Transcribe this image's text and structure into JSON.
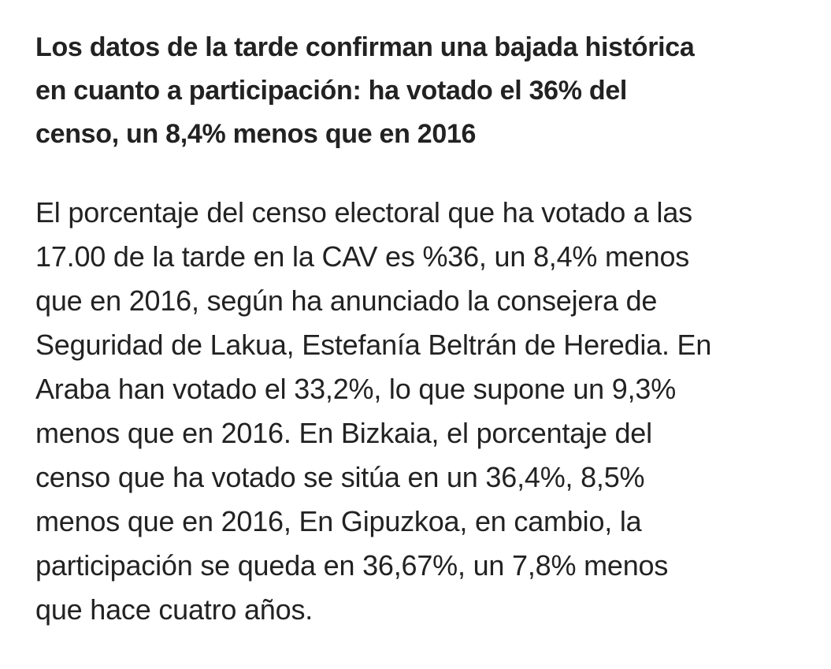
{
  "headline": {
    "lines": [
      "Los datos de la tarde confirman una bajada histórica",
      "en cuanto a participación: ha votado el 36% del",
      "censo, un 8,4% menos que en 2016"
    ]
  },
  "body": {
    "lines": [
      "El porcentaje del censo electoral que ha votado a las",
      "17.00 de la tarde en la CAV es %36, un 8,4% menos",
      "que en 2016, según ha anunciado la consejera de",
      "Seguridad de Lakua, Estefanía Beltrán de Heredia. En",
      "Araba han votado el 33,2%, lo que supone un 9,3%",
      "menos que en 2016. En Bizkaia, el porcentaje del",
      "censo que ha votado se sitúa en un 36,4%, 8,5%",
      "menos que en 2016, En Gipuzkoa, en cambio, la",
      "participación se queda en 36,67%, un 7,8% menos",
      "que hace cuatro años."
    ]
  }
}
